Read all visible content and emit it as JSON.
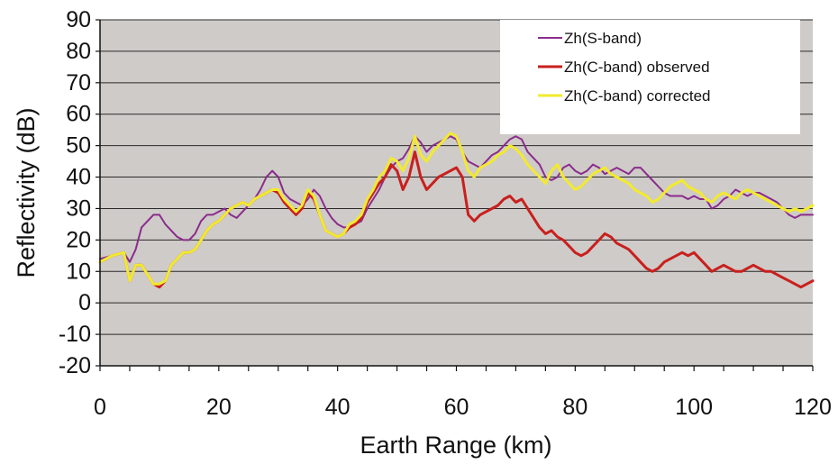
{
  "chart_data": {
    "type": "line",
    "xlabel": "Earth Range (km)",
    "ylabel": "Reflectivity (dB)",
    "xlim": [
      0,
      120
    ],
    "ylim": [
      -20,
      90
    ],
    "x_ticks": [
      "0",
      "20",
      "40",
      "60",
      "80",
      "100",
      "120"
    ],
    "y_ticks": [
      "90",
      "80",
      "70",
      "60",
      "50",
      "40",
      "30",
      "20",
      "10",
      "0",
      "-10",
      "-20"
    ],
    "grid": true,
    "legend_position": "top-right",
    "background_color": "#cfcbc8",
    "series": [
      {
        "name": "Zh(S-band)",
        "color": "#8a2c8c",
        "x": [
          0,
          2,
          4,
          5,
          6,
          7,
          8,
          9,
          10,
          11,
          12,
          13,
          14,
          15,
          16,
          17,
          18,
          19,
          20,
          21,
          22,
          23,
          24,
          25,
          26,
          27,
          28,
          29,
          30,
          31,
          32,
          33,
          34,
          35,
          36,
          37,
          38,
          39,
          40,
          41,
          42,
          43,
          44,
          45,
          46,
          47,
          48,
          49,
          50,
          51,
          52,
          53,
          54,
          55,
          56,
          57,
          58,
          59,
          60,
          61,
          62,
          63,
          64,
          65,
          66,
          67,
          68,
          69,
          70,
          71,
          72,
          73,
          74,
          75,
          76,
          77,
          78,
          79,
          80,
          81,
          82,
          83,
          84,
          85,
          86,
          87,
          88,
          89,
          90,
          91,
          92,
          93,
          94,
          95,
          96,
          97,
          98,
          99,
          100,
          101,
          102,
          103,
          104,
          105,
          106,
          107,
          108,
          109,
          110,
          111,
          112,
          113,
          114,
          115,
          116,
          117,
          118,
          119,
          120
        ],
        "y": [
          14,
          15,
          16,
          13,
          17,
          24,
          26,
          28,
          28,
          25,
          23,
          21,
          20,
          20,
          22,
          26,
          28,
          28,
          29,
          30,
          28,
          27,
          29,
          31,
          33,
          36,
          40,
          42,
          40,
          35,
          33,
          32,
          31,
          33,
          36,
          34,
          30,
          27,
          25,
          24,
          24,
          25,
          26,
          30,
          33,
          36,
          40,
          43,
          45,
          46,
          49,
          53,
          51,
          48,
          50,
          51,
          52,
          53,
          52,
          48,
          45,
          44,
          43,
          45,
          47,
          48,
          50,
          52,
          53,
          52,
          48,
          46,
          44,
          40,
          39,
          40,
          43,
          44,
          42,
          41,
          42,
          44,
          43,
          41,
          42,
          43,
          42,
          41,
          43,
          43,
          41,
          39,
          37,
          35,
          34,
          34,
          34,
          33,
          34,
          33,
          33,
          30,
          31,
          33,
          34,
          36,
          35,
          34,
          35,
          35,
          34,
          33,
          32,
          30,
          28,
          27,
          28,
          28,
          28
        ]
      },
      {
        "name": "Zh(C-band) observed",
        "color": "#c8201e",
        "x": [
          0,
          2,
          4,
          5,
          6,
          7,
          8,
          9,
          10,
          11,
          12,
          13,
          14,
          15,
          16,
          17,
          18,
          19,
          20,
          21,
          22,
          23,
          24,
          25,
          26,
          27,
          28,
          29,
          30,
          31,
          32,
          33,
          34,
          35,
          36,
          37,
          38,
          39,
          40,
          41,
          42,
          43,
          44,
          45,
          46,
          47,
          48,
          49,
          50,
          51,
          52,
          53,
          54,
          55,
          56,
          57,
          58,
          59,
          60,
          61,
          62,
          63,
          64,
          65,
          66,
          67,
          68,
          69,
          70,
          71,
          72,
          73,
          74,
          75,
          76,
          77,
          78,
          79,
          80,
          81,
          82,
          83,
          84,
          85,
          86,
          87,
          88,
          89,
          90,
          91,
          92,
          93,
          94,
          95,
          96,
          97,
          98,
          99,
          100,
          101,
          102,
          103,
          104,
          105,
          106,
          107,
          108,
          109,
          110,
          111,
          112,
          113,
          114,
          115,
          116,
          117,
          118,
          119,
          120
        ],
        "y": [
          13,
          15,
          16,
          7,
          12,
          12,
          9,
          6,
          5,
          7,
          12,
          14,
          16,
          16,
          17,
          20,
          23,
          25,
          26,
          28,
          30,
          31,
          32,
          31,
          33,
          34,
          35,
          36,
          35,
          32,
          30,
          28,
          30,
          35,
          33,
          28,
          23,
          22,
          21,
          22,
          24,
          25,
          27,
          32,
          35,
          38,
          40,
          44,
          42,
          36,
          40,
          48,
          40,
          36,
          38,
          40,
          41,
          42,
          43,
          40,
          28,
          26,
          28,
          29,
          30,
          31,
          33,
          34,
          32,
          33,
          30,
          27,
          24,
          22,
          23,
          21,
          20,
          18,
          16,
          15,
          16,
          18,
          20,
          22,
          21,
          19,
          18,
          17,
          15,
          13,
          11,
          10,
          11,
          13,
          14,
          15,
          16,
          15,
          16,
          14,
          12,
          10,
          11,
          12,
          11,
          10,
          10,
          11,
          12,
          11,
          10,
          10,
          9,
          8,
          7,
          6,
          5,
          6,
          7
        ]
      },
      {
        "name": "Zh(C-band) corrected",
        "color": "#f2ea2e",
        "x": [
          0,
          2,
          4,
          5,
          6,
          7,
          8,
          9,
          10,
          11,
          12,
          13,
          14,
          15,
          16,
          17,
          18,
          19,
          20,
          21,
          22,
          23,
          24,
          25,
          26,
          27,
          28,
          29,
          30,
          31,
          32,
          33,
          34,
          35,
          36,
          37,
          38,
          39,
          40,
          41,
          42,
          43,
          44,
          45,
          46,
          47,
          48,
          49,
          50,
          51,
          52,
          53,
          54,
          55,
          56,
          57,
          58,
          59,
          60,
          61,
          62,
          63,
          64,
          65,
          66,
          67,
          68,
          69,
          70,
          71,
          72,
          73,
          74,
          75,
          76,
          77,
          78,
          79,
          80,
          81,
          82,
          83,
          84,
          85,
          86,
          87,
          88,
          89,
          90,
          91,
          92,
          93,
          94,
          95,
          96,
          97,
          98,
          99,
          100,
          101,
          102,
          103,
          104,
          105,
          106,
          107,
          108,
          109,
          110,
          111,
          112,
          113,
          114,
          115,
          116,
          117,
          118,
          119,
          120
        ],
        "y": [
          13,
          15,
          16,
          7,
          12,
          12,
          9,
          6,
          6,
          7,
          12,
          14,
          16,
          16,
          17,
          20,
          23,
          25,
          26,
          28,
          30,
          31,
          32,
          31,
          33,
          34,
          35,
          36,
          36,
          33,
          31,
          29,
          31,
          36,
          34,
          28,
          23,
          22,
          21,
          22,
          25,
          26,
          28,
          33,
          36,
          40,
          42,
          46,
          45,
          42,
          46,
          53,
          47,
          45,
          48,
          50,
          52,
          54,
          53,
          48,
          42,
          40,
          43,
          44,
          45,
          47,
          48,
          50,
          49,
          47,
          44,
          42,
          40,
          38,
          42,
          44,
          40,
          38,
          36,
          37,
          39,
          41,
          42,
          43,
          41,
          40,
          39,
          38,
          36,
          35,
          34,
          32,
          33,
          35,
          37,
          38,
          39,
          37,
          36,
          35,
          33,
          32,
          34,
          35,
          34,
          33,
          35,
          36,
          35,
          34,
          33,
          32,
          31,
          30,
          29,
          30,
          29,
          30,
          31
        ]
      }
    ]
  }
}
